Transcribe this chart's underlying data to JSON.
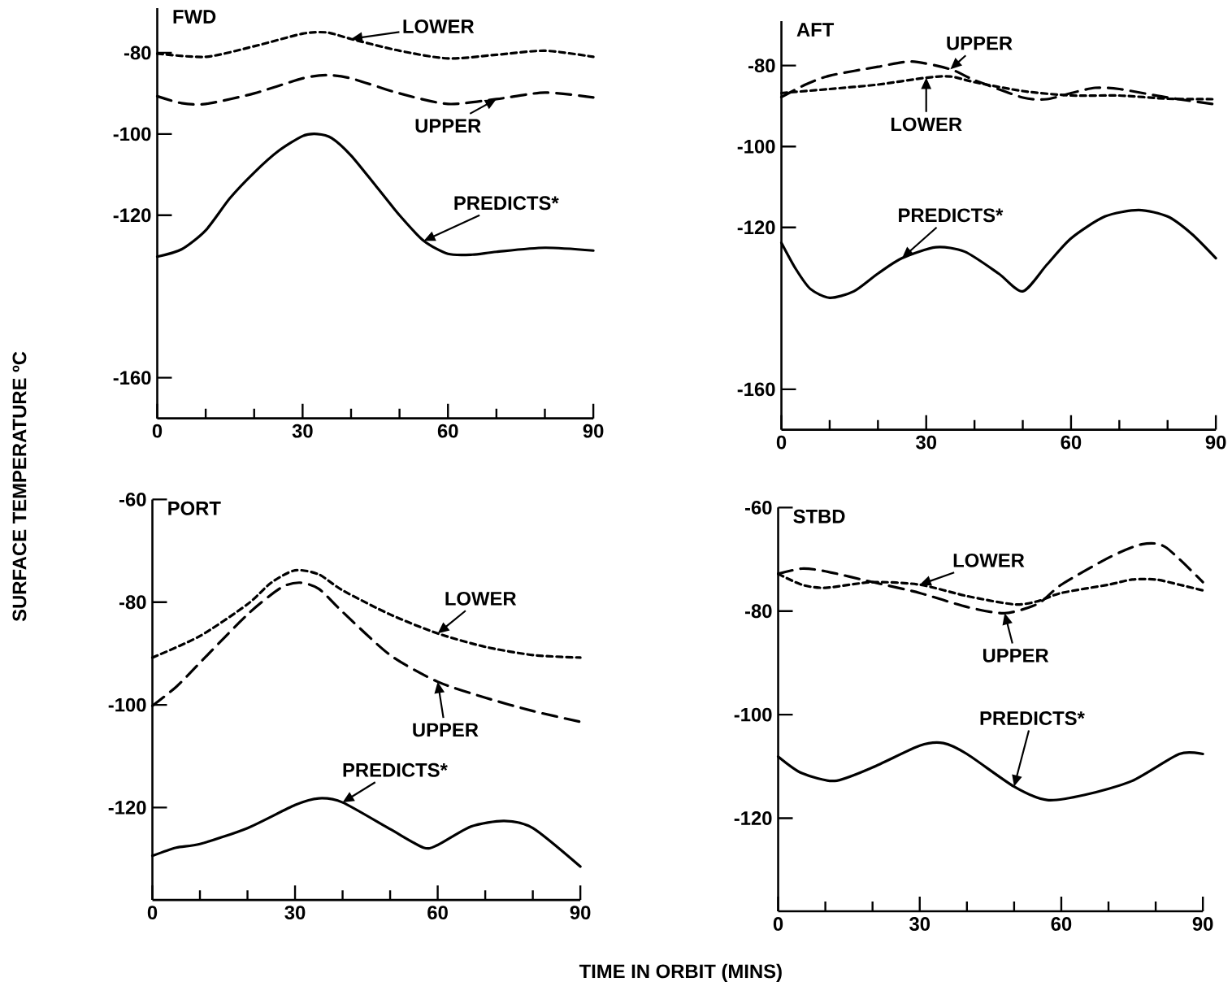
{
  "chart_data": [
    {
      "type": "line",
      "title": "FWD",
      "ylabel": "SURFACE TEMPERATURE ºC",
      "xlim": [
        0,
        90
      ],
      "ylim": [
        -170,
        -69
      ],
      "xticks": [
        0,
        {
          "value": 10,
          "label": null
        },
        {
          "value": 20,
          "label": null
        },
        30,
        {
          "value": 40,
          "label": null
        },
        {
          "value": 50,
          "label": null
        },
        60,
        {
          "value": 70,
          "label": null
        },
        {
          "value": 80,
          "label": null
        },
        90
      ],
      "yticks": [
        -80,
        -100,
        -120,
        -160
      ],
      "series": [
        {
          "name": "LOWER",
          "color": "#000000",
          "line_style": "dotted",
          "x": [
            0,
            10,
            20,
            30,
            35,
            40,
            50,
            60,
            70,
            80,
            90
          ],
          "values": [
            -80.2,
            -81,
            -78.4,
            -75.3,
            -75,
            -76.6,
            -79.5,
            -81.4,
            -80.5,
            -79.5,
            -81
          ]
        },
        {
          "name": "UPPER",
          "color": "#000000",
          "line_style": "dashed",
          "x": [
            0,
            5,
            10,
            20,
            30,
            35,
            40,
            50,
            60,
            70,
            80,
            90
          ],
          "values": [
            -90.7,
            -92.4,
            -92.6,
            -90,
            -86.3,
            -85.5,
            -86.3,
            -90,
            -92.6,
            -91.4,
            -89.8,
            -91
          ]
        },
        {
          "name": "PREDICTS*",
          "color": "#000000",
          "line_style": "solid",
          "x": [
            0,
            5,
            10,
            15,
            20,
            25,
            30,
            33,
            36,
            40,
            45,
            50,
            55,
            60,
            65,
            70,
            80,
            90
          ],
          "values": [
            -130.2,
            -128.4,
            -123.7,
            -115.8,
            -109.5,
            -104.2,
            -100.5,
            -100,
            -101,
            -105.3,
            -112.6,
            -120,
            -126.3,
            -129.5,
            -129.7,
            -129,
            -128,
            -128.7
          ]
        }
      ]
    },
    {
      "type": "line",
      "title": "AFT",
      "xlim": [
        0,
        90
      ],
      "ylim": [
        -170,
        -69
      ],
      "xticks": [
        0,
        {
          "value": 10,
          "label": null
        },
        {
          "value": 20,
          "label": null
        },
        30,
        {
          "value": 40,
          "label": null
        },
        {
          "value": 50,
          "label": null
        },
        60,
        {
          "value": 70,
          "label": null
        },
        {
          "value": 80,
          "label": null
        },
        90
      ],
      "yticks": [
        -80,
        -100,
        -120,
        -160
      ],
      "series": [
        {
          "name": "UPPER",
          "color": "#000000",
          "line_style": "dashed",
          "x": [
            0,
            5,
            10,
            20,
            27,
            35,
            40,
            50,
            55,
            60,
            65,
            70,
            80,
            90
          ],
          "values": [
            -87.8,
            -84.7,
            -82.5,
            -80.3,
            -79,
            -80.9,
            -83.6,
            -87.9,
            -88.3,
            -86.8,
            -85.5,
            -85.8,
            -87.9,
            -89.6
          ]
        },
        {
          "name": "LOWER",
          "color": "#000000",
          "line_style": "dotted",
          "x": [
            0,
            10,
            20,
            30,
            35,
            40,
            50,
            60,
            70,
            80,
            90
          ],
          "values": [
            -86.8,
            -85.8,
            -84.7,
            -83,
            -82.7,
            -84.1,
            -86.3,
            -87.4,
            -87.4,
            -88.2,
            -88.3
          ]
        },
        {
          "name": "PREDICTS*",
          "color": "#000000",
          "line_style": "solid",
          "x": [
            0,
            3,
            6,
            10,
            15,
            20,
            25,
            32,
            38,
            45,
            50,
            55,
            60,
            67,
            74,
            80,
            85,
            90
          ],
          "values": [
            -123.8,
            -130.3,
            -135.2,
            -137.4,
            -135.8,
            -131.4,
            -127.6,
            -124.9,
            -126,
            -131.4,
            -135.8,
            -129.2,
            -122.7,
            -117.3,
            -115.7,
            -117.3,
            -121.6,
            -127.6
          ]
        }
      ]
    },
    {
      "type": "line",
      "title": "PORT",
      "xlabel": "TIME IN ORBIT (MINS)",
      "xlim": [
        0,
        90
      ],
      "ylim": [
        -138,
        -60
      ],
      "xticks": [
        0,
        {
          "value": 10,
          "label": null
        },
        {
          "value": 20,
          "label": null
        },
        30,
        {
          "value": 40,
          "label": null
        },
        {
          "value": 50,
          "label": null
        },
        60,
        {
          "value": 70,
          "label": null
        },
        {
          "value": 80,
          "label": null
        },
        90
      ],
      "yticks": [
        -60,
        -80,
        -100,
        -120
      ],
      "series": [
        {
          "name": "LOWER",
          "color": "#000000",
          "line_style": "dotted",
          "x": [
            0,
            10,
            20,
            25,
            30,
            35,
            40,
            50,
            60,
            70,
            80,
            90
          ],
          "values": [
            -90.8,
            -86.6,
            -80.4,
            -76.2,
            -73.8,
            -74.6,
            -77.7,
            -82.4,
            -86.1,
            -88.7,
            -90.3,
            -90.8
          ]
        },
        {
          "name": "UPPER",
          "color": "#000000",
          "line_style": "dashed",
          "x": [
            0,
            5,
            10,
            20,
            27,
            31,
            35,
            40,
            50,
            60,
            70,
            80,
            90
          ],
          "values": [
            -100.2,
            -96.5,
            -91.8,
            -82.4,
            -77.2,
            -76.2,
            -77.4,
            -81.9,
            -90.3,
            -95.5,
            -98.6,
            -101.2,
            -103.3
          ]
        },
        {
          "name": "PREDICTS*",
          "color": "#000000",
          "line_style": "solid",
          "x": [
            0,
            5,
            10,
            20,
            30,
            35,
            40,
            50,
            57,
            60,
            67,
            74,
            80,
            90
          ],
          "values": [
            -129.4,
            -127.8,
            -127.1,
            -124,
            -119.5,
            -118.2,
            -119,
            -124.2,
            -127.8,
            -127.3,
            -123.7,
            -122.6,
            -124,
            -131.5
          ]
        }
      ]
    },
    {
      "type": "line",
      "title": "STBD",
      "xlim": [
        0,
        90
      ],
      "ylim": [
        -138,
        -60
      ],
      "xticks": [
        0,
        {
          "value": 10,
          "label": null
        },
        {
          "value": 20,
          "label": null
        },
        30,
        {
          "value": 40,
          "label": null
        },
        {
          "value": 50,
          "label": null
        },
        60,
        {
          "value": 70,
          "label": null
        },
        {
          "value": 80,
          "label": null
        },
        90
      ],
      "yticks": [
        -60,
        -80,
        -100,
        -120
      ],
      "series": [
        {
          "name": "LOWER",
          "color": "#000000",
          "line_style": "dotted",
          "x": [
            0,
            5,
            10,
            20,
            30,
            40,
            50,
            55,
            60,
            70,
            75,
            80,
            85,
            90
          ],
          "values": [
            -72.8,
            -74.9,
            -75.5,
            -74.4,
            -74.9,
            -77.1,
            -78.7,
            -78.1,
            -76.5,
            -74.9,
            -73.9,
            -73.9,
            -74.9,
            -76
          ]
        },
        {
          "name": "UPPER",
          "color": "#000000",
          "line_style": "dashed",
          "x": [
            0,
            5,
            10,
            20,
            30,
            40,
            48,
            55,
            60,
            70,
            77,
            82,
            90
          ],
          "values": [
            -72.8,
            -71.8,
            -72.3,
            -74.4,
            -76.5,
            -79.2,
            -80.4,
            -78.6,
            -74.9,
            -69.7,
            -67.1,
            -67.6,
            -74.4
          ]
        },
        {
          "name": "PREDICTS*",
          "color": "#000000",
          "line_style": "solid",
          "x": [
            0,
            5,
            12,
            20,
            30,
            35,
            40,
            50,
            57,
            65,
            75,
            85,
            90
          ],
          "values": [
            -108.1,
            -111.3,
            -112.8,
            -110.2,
            -106,
            -105.5,
            -107.6,
            -113.9,
            -116.5,
            -115.5,
            -112.8,
            -107.6,
            -107.6
          ]
        }
      ]
    }
  ]
}
